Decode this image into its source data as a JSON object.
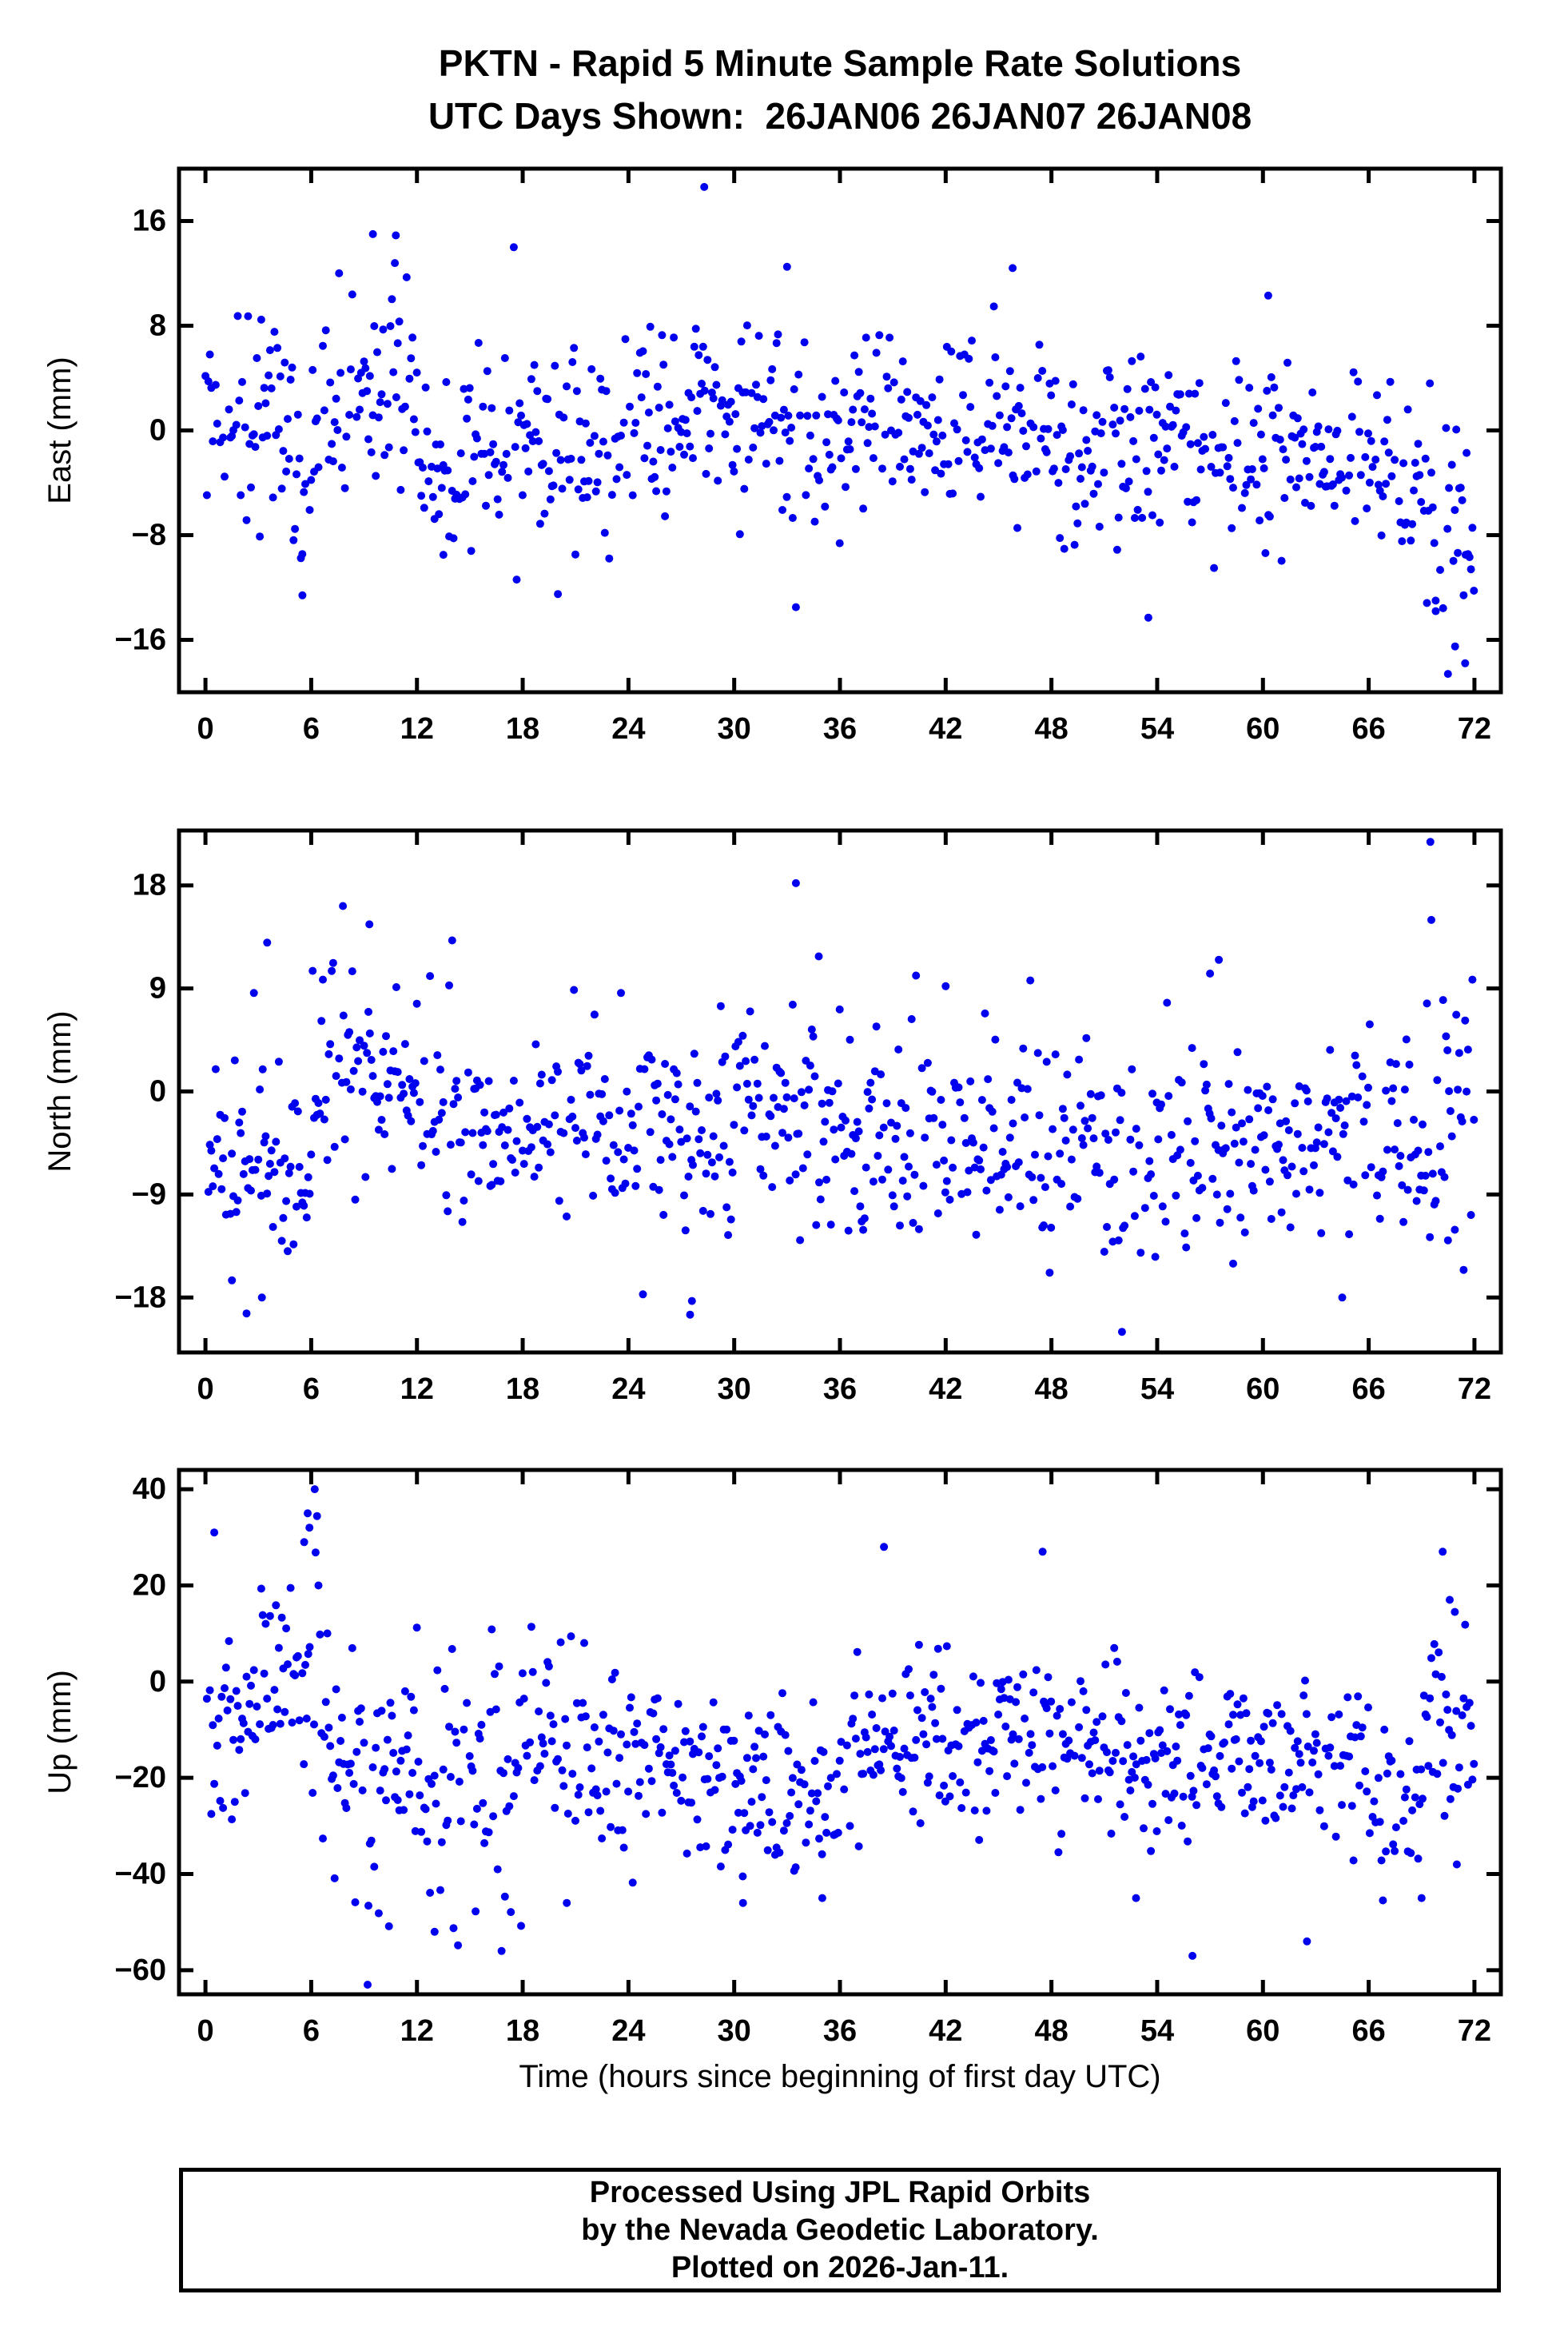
{
  "title": {
    "line1": "PKTN - Rapid 5 Minute Sample Rate Solutions",
    "line2": "UTC Days Shown:  26JAN06 26JAN07 26JAN08"
  },
  "xlabel": "Time (hours since beginning of first day UTC)",
  "footer": {
    "line1": "Processed Using JPL Rapid Orbits",
    "line2": "by the Nevada Geodetic Laboratory.",
    "line3": "Plotted on 2026-Jan-11."
  },
  "marker": {
    "color": "#0000ee",
    "radius": 5
  },
  "chart_data": [
    {
      "type": "scatter",
      "name": "east",
      "ylabel": "East (mm)",
      "ylim": [
        -20,
        20
      ],
      "yticks": [
        {
          "v": -16,
          "label": "−16"
        },
        {
          "v": -8,
          "label": "−8"
        },
        {
          "v": 0,
          "label": "0"
        },
        {
          "v": 8,
          "label": "8"
        },
        {
          "v": 16,
          "label": "16"
        }
      ],
      "xlim": [
        -1.5,
        73.5
      ],
      "xticks": [
        0,
        6,
        12,
        18,
        24,
        30,
        36,
        42,
        48,
        54,
        60,
        66,
        72
      ],
      "generator": {
        "seed": 42,
        "x_start": 0,
        "x_end": 72,
        "step": 0.0833,
        "gap_prob": 0.1,
        "segments": [
          [
            0,
            2,
            1.5,
            3.5
          ],
          [
            2,
            5,
            0.5,
            4
          ],
          [
            5,
            6,
            -4,
            4
          ],
          [
            6,
            12,
            3,
            4.5
          ],
          [
            12,
            14,
            -3,
            4
          ],
          [
            14,
            18,
            -1,
            3.5
          ],
          [
            18,
            24,
            -1,
            4
          ],
          [
            24,
            30,
            1,
            3.5
          ],
          [
            30,
            36,
            0.5,
            4
          ],
          [
            36,
            42,
            0.5,
            3
          ],
          [
            42,
            48,
            0,
            3.5
          ],
          [
            48,
            54,
            -1.5,
            3.5
          ],
          [
            54,
            60,
            -1,
            3.5
          ],
          [
            60,
            66,
            -2,
            3.2
          ],
          [
            66,
            69,
            -3,
            3
          ],
          [
            69,
            72.01,
            -7,
            5
          ]
        ]
      },
      "outliers": [
        [
          28.3,
          18.6
        ],
        [
          9.5,
          15
        ],
        [
          10.8,
          14.9
        ],
        [
          45.8,
          12.4
        ],
        [
          33,
          12.5
        ],
        [
          60.3,
          10.3
        ],
        [
          13.5,
          -9.5
        ],
        [
          20,
          -12.5
        ],
        [
          33.5,
          -13.5
        ],
        [
          5.5,
          -12.6
        ],
        [
          53.5,
          -14.3
        ],
        [
          70.5,
          -18.6
        ],
        [
          70.9,
          -16.5
        ],
        [
          69.8,
          -13
        ],
        [
          71.5,
          -9.5
        ]
      ]
    },
    {
      "type": "scatter",
      "name": "north",
      "ylabel": "North (mm)",
      "ylim": [
        -22.8,
        22.8
      ],
      "yticks": [
        {
          "v": -18,
          "label": "−18"
        },
        {
          "v": -9,
          "label": "−9"
        },
        {
          "v": 0,
          "label": "0"
        },
        {
          "v": 9,
          "label": "9"
        },
        {
          "v": 18,
          "label": "18"
        }
      ],
      "xlim": [
        -1.5,
        73.5
      ],
      "xticks": [
        0,
        6,
        12,
        18,
        24,
        30,
        36,
        42,
        48,
        54,
        60,
        66,
        72
      ],
      "generator": {
        "seed": 7,
        "x_start": 0,
        "x_end": 72,
        "step": 0.0833,
        "gap_prob": 0.1,
        "segments": [
          [
            0,
            3,
            -5,
            4.5
          ],
          [
            3,
            6,
            -7,
            4.5
          ],
          [
            6,
            9,
            2,
            5
          ],
          [
            9,
            12,
            1,
            4.5
          ],
          [
            12,
            15,
            -3,
            4
          ],
          [
            15,
            21,
            -4,
            4
          ],
          [
            21,
            24,
            -3,
            4.5
          ],
          [
            24,
            27,
            -3,
            5
          ],
          [
            27,
            30,
            -6,
            5.5
          ],
          [
            30,
            33,
            -1,
            4
          ],
          [
            33,
            36,
            -2,
            5
          ],
          [
            36,
            42,
            -4,
            4
          ],
          [
            42,
            45,
            -3.5,
            4.5
          ],
          [
            45,
            48,
            -6,
            4.5
          ],
          [
            48,
            51,
            -5,
            4.5
          ],
          [
            51,
            54,
            -6,
            5
          ],
          [
            54,
            57,
            -3,
            4.5
          ],
          [
            57,
            60,
            -4,
            4.5
          ],
          [
            60,
            66,
            -4,
            4
          ],
          [
            66,
            69,
            -4,
            4.5
          ],
          [
            69,
            72.01,
            -2,
            5.5
          ]
        ]
      },
      "outliers": [
        [
          33.5,
          18.2
        ],
        [
          7.8,
          16.2
        ],
        [
          9.3,
          14.6
        ],
        [
          3.5,
          13
        ],
        [
          14,
          13.2
        ],
        [
          34.8,
          11.8
        ],
        [
          69.5,
          21.8
        ],
        [
          57.5,
          11.5
        ],
        [
          57,
          10.3
        ],
        [
          46.8,
          9.7
        ],
        [
          42,
          9.2
        ],
        [
          27.5,
          -19.5
        ],
        [
          27.6,
          -18.3
        ],
        [
          3.2,
          -18
        ],
        [
          1.5,
          -16.5
        ],
        [
          52,
          -21
        ],
        [
          51,
          -14
        ],
        [
          64.5,
          -18
        ],
        [
          70.5,
          -13
        ]
      ]
    },
    {
      "type": "scatter",
      "name": "up",
      "ylabel": "Up (mm)",
      "ylim": [
        -65,
        44
      ],
      "yticks": [
        {
          "v": -60,
          "label": "−60"
        },
        {
          "v": -40,
          "label": "−40"
        },
        {
          "v": -20,
          "label": "−20"
        },
        {
          "v": 0,
          "label": "0"
        },
        {
          "v": 20,
          "label": "20"
        },
        {
          "v": 40,
          "label": "40"
        }
      ],
      "xlim": [
        -1.5,
        73.5
      ],
      "xticks": [
        0,
        6,
        12,
        18,
        24,
        30,
        36,
        42,
        48,
        54,
        60,
        66,
        72
      ],
      "generator": {
        "seed": 1234,
        "x_start": 0,
        "x_end": 72,
        "step": 0.0833,
        "gap_prob": 0.1,
        "segments": [
          [
            0,
            1,
            -8,
            10
          ],
          [
            1,
            3,
            -10,
            10
          ],
          [
            3,
            5,
            0,
            10
          ],
          [
            5,
            6.5,
            10,
            12
          ],
          [
            6.5,
            9,
            -18,
            12
          ],
          [
            9,
            12,
            -22,
            12
          ],
          [
            12,
            15,
            -20,
            12
          ],
          [
            15,
            18,
            -22,
            12
          ],
          [
            18,
            21,
            -12,
            10
          ],
          [
            21,
            24,
            -18,
            9
          ],
          [
            24,
            27,
            -16,
            9
          ],
          [
            27,
            30,
            -20,
            9
          ],
          [
            30,
            33,
            -22,
            9
          ],
          [
            33,
            36,
            -24,
            9
          ],
          [
            36,
            39,
            -14,
            10
          ],
          [
            39,
            42,
            -12,
            9
          ],
          [
            42,
            45,
            -12,
            9
          ],
          [
            45,
            48,
            -10,
            9
          ],
          [
            48,
            51,
            -12,
            9
          ],
          [
            51,
            54,
            -16,
            9
          ],
          [
            54,
            57,
            -14,
            9
          ],
          [
            57,
            60,
            -16,
            8
          ],
          [
            60,
            63,
            -15,
            8
          ],
          [
            63,
            66,
            -18,
            8
          ],
          [
            66,
            69,
            -26,
            8
          ],
          [
            69,
            72.01,
            -10,
            13
          ]
        ]
      },
      "outliers": [
        [
          0.5,
          31
        ],
        [
          5.8,
          35
        ],
        [
          5.9,
          32
        ],
        [
          6.2,
          40
        ],
        [
          5.6,
          29
        ],
        [
          38.5,
          28
        ],
        [
          47.5,
          27
        ],
        [
          70.2,
          27
        ],
        [
          70.6,
          17
        ],
        [
          9.2,
          -63
        ],
        [
          16.8,
          -56
        ],
        [
          13,
          -52
        ],
        [
          20.5,
          -46
        ],
        [
          56,
          -57
        ],
        [
          62.5,
          -54
        ],
        [
          30.5,
          -46
        ],
        [
          35,
          -45
        ],
        [
          52.8,
          -45
        ],
        [
          69,
          -45
        ],
        [
          71,
          -38
        ]
      ]
    }
  ]
}
